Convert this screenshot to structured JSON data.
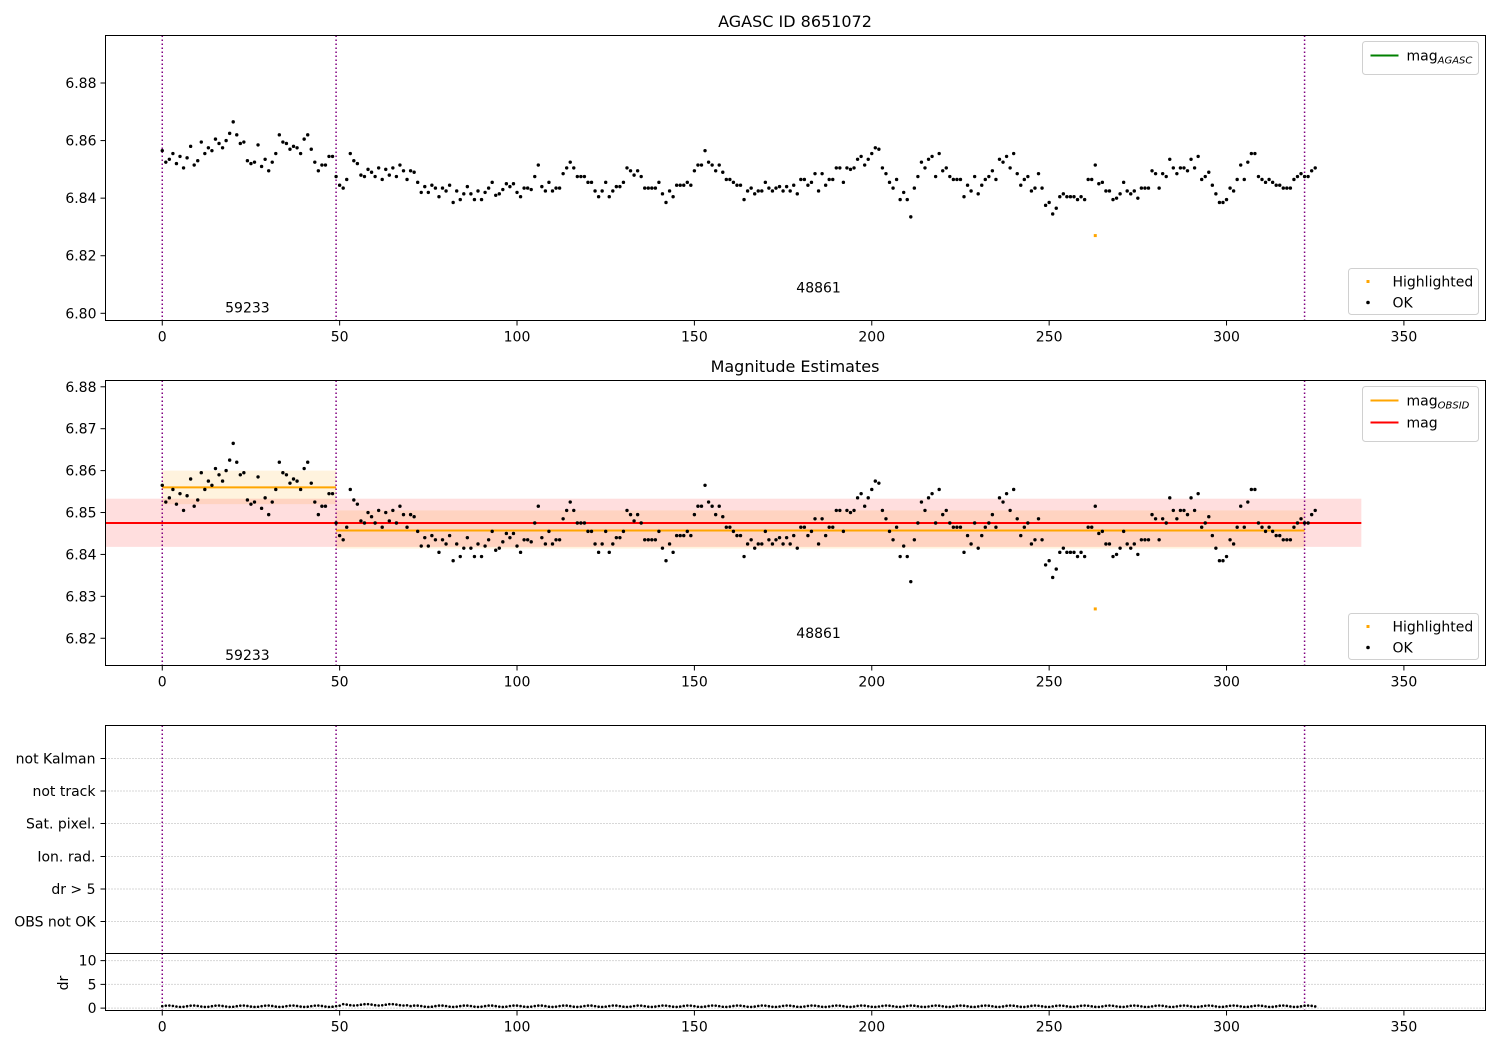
{
  "chart_data": [
    {
      "type": "scatter",
      "title": "AGASC ID 8651072",
      "xlim": [
        -16,
        373
      ],
      "ylim": [
        6.7975,
        6.8965
      ],
      "xticks": [
        0,
        50,
        100,
        150,
        200,
        250,
        300,
        350
      ],
      "yticks": [
        6.8,
        6.82,
        6.84,
        6.86,
        6.88
      ],
      "ytick_labels": [
        "6.80",
        "6.82",
        "6.84",
        "6.86",
        "6.88"
      ],
      "obs_boundaries": [
        0,
        49,
        322
      ],
      "obs_labels": [
        {
          "text": "59233",
          "x": 24,
          "y": 6.802
        },
        {
          "text": "48861",
          "x": 185,
          "y": 6.809
        }
      ],
      "lines": [],
      "legend_top": [
        {
          "label": "mag",
          "sub": "AGASC",
          "color": "#008000"
        }
      ],
      "legend_bottom": [
        {
          "label": "Highlighted",
          "color": "#ffa500"
        },
        {
          "label": "OK",
          "color": "#000000"
        }
      ],
      "highlighted": [
        {
          "x": 263,
          "y": 6.827
        }
      ]
    },
    {
      "type": "scatter",
      "title": "Magnitude Estimates",
      "xlim": [
        -16,
        373
      ],
      "ylim": [
        6.8135,
        6.8815
      ],
      "xticks": [
        0,
        50,
        100,
        150,
        200,
        250,
        300,
        350
      ],
      "yticks": [
        6.82,
        6.83,
        6.84,
        6.85,
        6.86,
        6.87,
        6.88
      ],
      "ytick_labels": [
        "6.82",
        "6.83",
        "6.84",
        "6.85",
        "6.86",
        "6.87",
        "6.88"
      ],
      "obs_boundaries": [
        0,
        49,
        322
      ],
      "obs_labels": [
        {
          "text": "59233",
          "x": 24,
          "y": 6.816
        },
        {
          "text": "48861",
          "x": 185,
          "y": 6.8213
        }
      ],
      "lines": [
        {
          "name": "mag_OBSID",
          "x": [
            0,
            49
          ],
          "y": 6.856,
          "band": [
            6.852,
            6.86
          ],
          "color": "#ffa500"
        },
        {
          "name": "mag_OBSID",
          "x": [
            49,
            322
          ],
          "y": 6.8457,
          "band": [
            6.8414,
            6.8505
          ],
          "color": "#ffa500"
        },
        {
          "name": "mag",
          "x": [
            -16,
            338
          ],
          "y": 6.8475,
          "band": [
            6.8418,
            6.8533
          ],
          "color": "#ff0000"
        }
      ],
      "legend_top": [
        {
          "label": "mag",
          "sub": "OBSID",
          "color": "#ffa500"
        },
        {
          "label": "mag",
          "sub": "",
          "color": "#ff0000"
        }
      ],
      "legend_bottom": [
        {
          "label": "Highlighted",
          "color": "#ffa500"
        },
        {
          "label": "OK",
          "color": "#000000"
        }
      ],
      "highlighted": [
        {
          "x": 263,
          "y": 6.827
        }
      ]
    },
    {
      "type": "scatter",
      "title": "",
      "flag_labels": [
        "not Kalman",
        "not track",
        "Sat. pixel.",
        "Ion. rad.",
        "dr > 5",
        "OBS not OK"
      ],
      "flags": [],
      "obs_boundaries": [
        0,
        49,
        322
      ]
    },
    {
      "type": "scatter",
      "title": "",
      "ylabel": "dr",
      "xlim": [
        -16,
        373
      ],
      "ylim": [
        -0.5,
        11.5
      ],
      "xticks": [
        0,
        50,
        100,
        150,
        200,
        250,
        300,
        350
      ],
      "yticks": [
        0,
        5,
        10
      ],
      "ytick_labels": [
        "0",
        "5",
        "10"
      ],
      "obs_boundaries": [
        0,
        49,
        322
      ],
      "dr_level": 0.4
    }
  ],
  "colors": {
    "ok": "#000000",
    "highlighted": "#ffa500",
    "boundary": "#800080",
    "grid": "#b0b0b0"
  },
  "mag_series_text": "6.8565 6.8525 6.8535 6.8555 6.852 6.8545 6.8505 6.854 6.858 6.8515 6.853 6.8595 6.8555 6.8575 6.8565 6.8605 6.859 6.8575 6.860 6.8625 6.8665 6.862 6.859 6.8595 6.853 6.852 6.8525 6.8585 6.851 6.8535 6.8495 6.8525 6.8555 6.862 6.8595 6.859 6.857 6.858 6.8575 6.8555 6.8605 6.862 6.857 6.8525 6.8495 6.8515 6.8515 6.8545 6.8545 6.8475 6.8445 6.8435 6.8465 6.8555 6.853 6.852 6.848 6.8475 6.850 6.849 6.8475 6.8505 6.8465 6.850 6.848 6.8505 6.8475 6.8515 6.8495 6.8465 6.8495 6.849 6.8455 6.842 6.844 6.842 6.8445 6.8435 6.8405 6.8435 6.8425 6.8445 6.8385 6.8425 6.8395 6.8415 6.844 6.8415 6.8395 6.8425 6.8395 6.842 6.8435 6.8455 6.841 6.8415 6.843 6.845 6.844 6.845 6.842 6.8405 6.8435 6.8435 6.843 6.8475 6.8515 6.844 6.8425 6.8455 6.8425 6.8435 6.8435 6.8485 6.8505 6.8525 6.8505 6.8475 6.8475 6.8475 6.8455 6.8455 6.8425 6.8405 6.8425 6.8455 6.8405 6.8425 6.844 6.844 6.8455 6.8505 6.8495 6.848 6.8495 6.8475 6.8435 6.8435 6.8435 6.8435 6.8455 6.8415 6.8385 6.8425 6.8405 6.8445 6.8445 6.8445 6.8455 6.8445 6.8495 6.8515 6.8515 6.8565 6.8525 6.8515 6.8495 6.8515 6.849 6.8465 6.8465 6.8455 6.8445 6.8445 6.8395 6.8425 6.8435 6.8415 6.8425 6.8425 6.8455 6.8435 6.8425 6.8435 6.844 6.8425 6.844 6.8425 6.8445 6.8415 6.8465 6.8465 6.8445 6.8455 6.8485 6.8425 6.8485 6.8445 6.8465 6.8465 6.8505 6.8505 6.8455 6.8505 6.850 6.8505 6.8535 6.8545 6.8515 6.8535 6.8555 6.8575 6.857 6.8505 6.8485 6.8455 6.8435 6.8465 6.8395 6.842 6.8395 6.8335 6.8435 6.8475 6.8525 6.8505 6.8535 6.8545 6.8475 6.8555 6.8495 6.8505 6.8475 6.8465 6.8465 6.8465 6.8405 6.8445 6.8425 6.8475 6.8415 6.8445 6.8465 6.8475 6.8495 6.8465 6.8535 6.8525 6.8545 6.8505 6.8555 6.8485 6.8445 6.8465 6.8475 6.8425 6.8435 6.8485 6.8435 6.8375 6.8385 6.8345 6.8365 6.8405 6.8415 6.8405 6.8405 6.8405 6.8395 6.8405 6.8395 6.8465 6.8465 6.8515 6.845 6.8455 6.8425 6.8425 6.8395 6.840 6.8415 6.8455 6.8425 6.8415 6.8425 6.840 6.8435 6.8435 6.8435 6.8495 6.8485 6.8435 6.8485 6.8475 6.8535 6.8505 6.8485 6.8505 6.8505 6.8495 6.8535 6.8505 6.8545 6.8465 6.8475 6.849 6.8445 6.8415 6.8385 6.8385 6.8395 6.8435 6.8425 6.8465 6.8515 6.8465 6.8525 6.8555 6.8555 6.8475 6.8465 6.8455 6.8465 6.8455 6.8445 6.8445 6.8435 6.8435 6.8435 6.8465 6.8475 6.8485 6.8475 6.8475 6.8495 6.8505"
}
